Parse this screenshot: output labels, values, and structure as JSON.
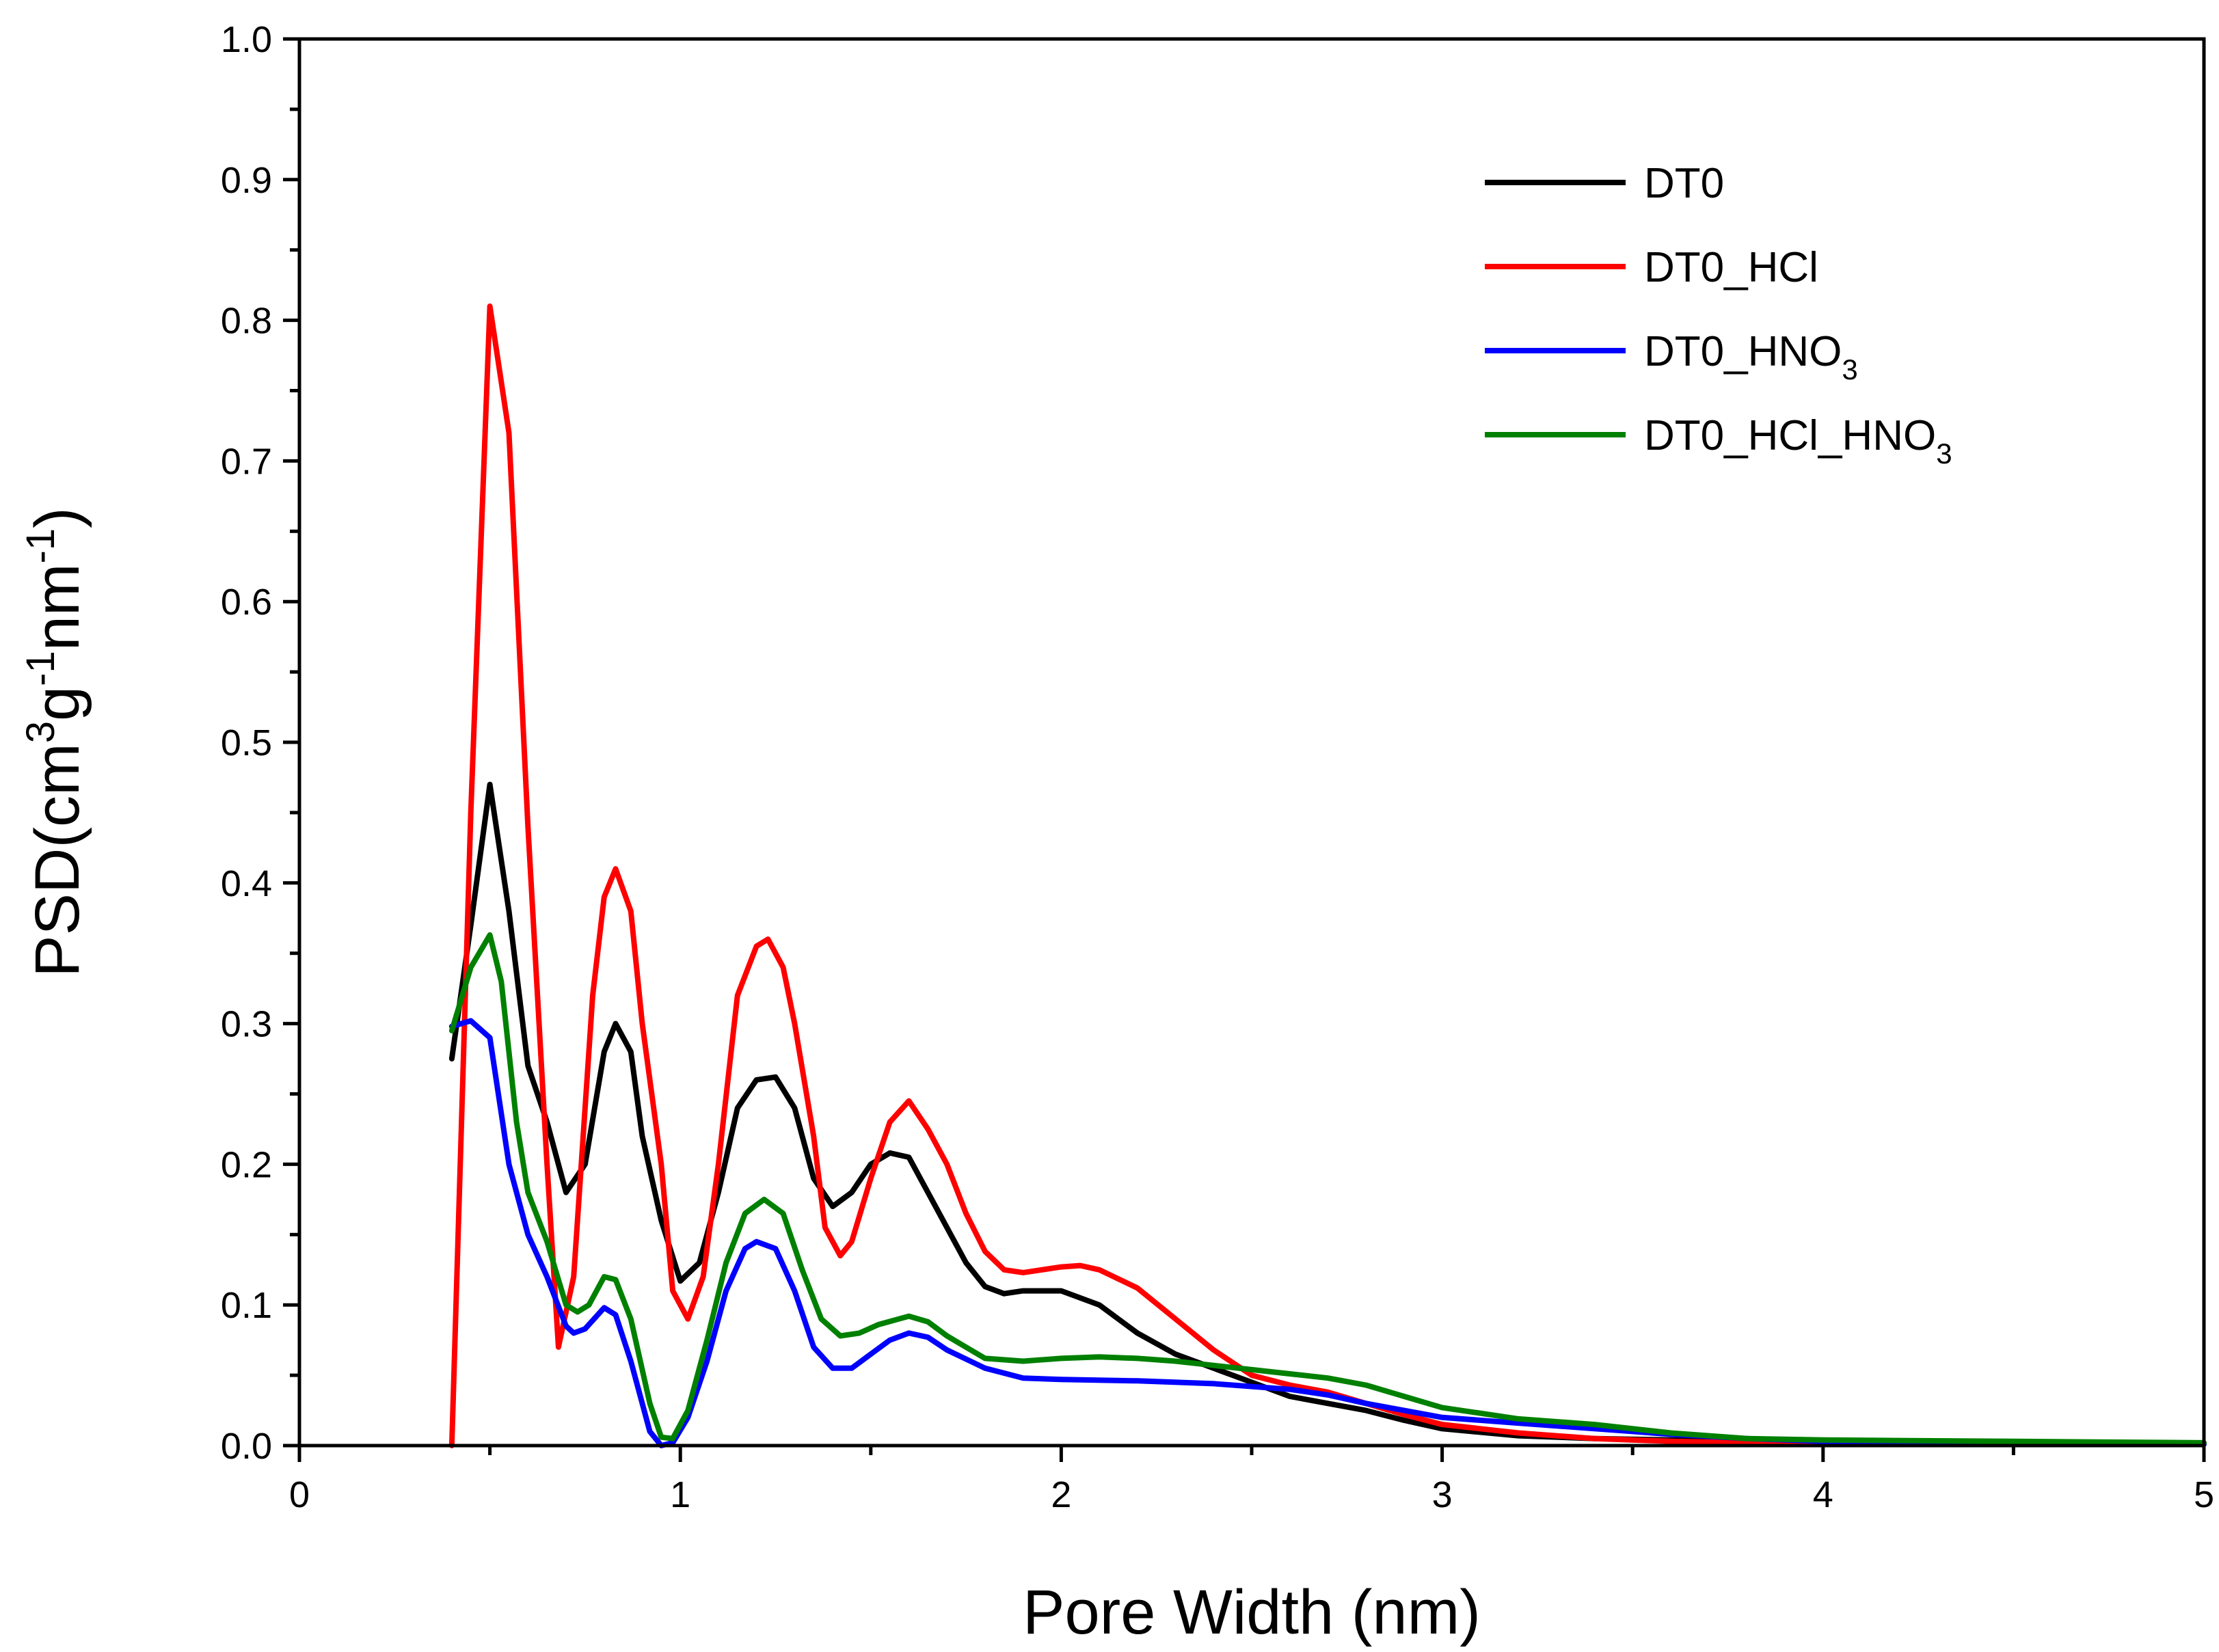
{
  "chart_data": {
    "type": "line",
    "title": "",
    "xlabel": "Pore Width (nm)",
    "ylabel": {
      "base": "PSD(cm",
      "sup1": "3",
      "mid": "g",
      "sup2": "-1",
      "mid2": "nm",
      "sup3": "-1",
      "end": ")"
    },
    "xlim": [
      0,
      5
    ],
    "ylim": [
      0,
      1.0
    ],
    "x_ticks": [
      0,
      1,
      2,
      3,
      4,
      5
    ],
    "x_tick_labels": [
      "0",
      "1",
      "2",
      "3",
      "4",
      "5"
    ],
    "y_ticks": [
      0.0,
      0.1,
      0.2,
      0.3,
      0.4,
      0.5,
      0.6,
      0.7,
      0.8,
      0.9,
      1.0
    ],
    "y_tick_labels": [
      "0.0",
      "0.1",
      "0.2",
      "0.3",
      "0.4",
      "0.5",
      "0.6",
      "0.7",
      "0.8",
      "0.9",
      "1.0"
    ],
    "grid": false,
    "legend_position": "top-right",
    "series": [
      {
        "name": "DT0",
        "label_main": "DT0",
        "label_sub": "",
        "label_tail": "",
        "color": "#000000",
        "points": [
          [
            0.4,
            0.275
          ],
          [
            0.45,
            0.37
          ],
          [
            0.5,
            0.47
          ],
          [
            0.55,
            0.38
          ],
          [
            0.6,
            0.27
          ],
          [
            0.65,
            0.23
          ],
          [
            0.7,
            0.18
          ],
          [
            0.75,
            0.2
          ],
          [
            0.8,
            0.28
          ],
          [
            0.83,
            0.3
          ],
          [
            0.87,
            0.28
          ],
          [
            0.9,
            0.22
          ],
          [
            0.95,
            0.16
          ],
          [
            1.0,
            0.117
          ],
          [
            1.05,
            0.13
          ],
          [
            1.1,
            0.18
          ],
          [
            1.15,
            0.24
          ],
          [
            1.2,
            0.26
          ],
          [
            1.25,
            0.262
          ],
          [
            1.3,
            0.24
          ],
          [
            1.35,
            0.19
          ],
          [
            1.4,
            0.17
          ],
          [
            1.45,
            0.18
          ],
          [
            1.5,
            0.2
          ],
          [
            1.55,
            0.208
          ],
          [
            1.6,
            0.205
          ],
          [
            1.65,
            0.18
          ],
          [
            1.7,
            0.155
          ],
          [
            1.75,
            0.13
          ],
          [
            1.8,
            0.113
          ],
          [
            1.85,
            0.108
          ],
          [
            1.9,
            0.11
          ],
          [
            2.0,
            0.11
          ],
          [
            2.1,
            0.1
          ],
          [
            2.2,
            0.08
          ],
          [
            2.3,
            0.065
          ],
          [
            2.4,
            0.055
          ],
          [
            2.5,
            0.045
          ],
          [
            2.6,
            0.035
          ],
          [
            2.7,
            0.03
          ],
          [
            2.8,
            0.025
          ],
          [
            2.9,
            0.018
          ],
          [
            3.0,
            0.012
          ],
          [
            3.2,
            0.007
          ],
          [
            3.4,
            0.005
          ],
          [
            3.6,
            0.004
          ],
          [
            3.8,
            0.003
          ],
          [
            4.0,
            0.002
          ],
          [
            4.5,
            0.001
          ],
          [
            5.0,
            0.001
          ]
        ]
      },
      {
        "name": "DT0_HCl",
        "label_main": "DT0_HCl",
        "label_sub": "",
        "label_tail": "",
        "color": "#ff0000",
        "points": [
          [
            0.4,
            0.0
          ],
          [
            0.45,
            0.45
          ],
          [
            0.5,
            0.81
          ],
          [
            0.55,
            0.72
          ],
          [
            0.6,
            0.44
          ],
          [
            0.65,
            0.2
          ],
          [
            0.68,
            0.07
          ],
          [
            0.72,
            0.12
          ],
          [
            0.77,
            0.32
          ],
          [
            0.8,
            0.39
          ],
          [
            0.83,
            0.41
          ],
          [
            0.87,
            0.38
          ],
          [
            0.9,
            0.3
          ],
          [
            0.95,
            0.2
          ],
          [
            0.98,
            0.11
          ],
          [
            1.02,
            0.09
          ],
          [
            1.06,
            0.12
          ],
          [
            1.1,
            0.2
          ],
          [
            1.15,
            0.32
          ],
          [
            1.2,
            0.355
          ],
          [
            1.23,
            0.36
          ],
          [
            1.27,
            0.34
          ],
          [
            1.3,
            0.3
          ],
          [
            1.35,
            0.22
          ],
          [
            1.38,
            0.155
          ],
          [
            1.42,
            0.135
          ],
          [
            1.45,
            0.145
          ],
          [
            1.5,
            0.19
          ],
          [
            1.55,
            0.23
          ],
          [
            1.6,
            0.245
          ],
          [
            1.65,
            0.225
          ],
          [
            1.7,
            0.2
          ],
          [
            1.75,
            0.165
          ],
          [
            1.8,
            0.138
          ],
          [
            1.85,
            0.125
          ],
          [
            1.9,
            0.123
          ],
          [
            2.0,
            0.127
          ],
          [
            2.05,
            0.128
          ],
          [
            2.1,
            0.125
          ],
          [
            2.2,
            0.112
          ],
          [
            2.3,
            0.09
          ],
          [
            2.4,
            0.068
          ],
          [
            2.5,
            0.05
          ],
          [
            2.6,
            0.043
          ],
          [
            2.7,
            0.038
          ],
          [
            2.8,
            0.03
          ],
          [
            2.9,
            0.022
          ],
          [
            3.0,
            0.015
          ],
          [
            3.2,
            0.009
          ],
          [
            3.4,
            0.005
          ],
          [
            3.6,
            0.003
          ],
          [
            3.8,
            0.002
          ],
          [
            4.0,
            0.001
          ],
          [
            4.5,
            0.001
          ],
          [
            5.0,
            0.001
          ]
        ]
      },
      {
        "name": "DT0_HNO3",
        "label_main": "DT0_HNO",
        "label_sub": "3",
        "label_tail": "",
        "color": "#0000ff",
        "points": [
          [
            0.4,
            0.298
          ],
          [
            0.45,
            0.302
          ],
          [
            0.5,
            0.29
          ],
          [
            0.55,
            0.2
          ],
          [
            0.6,
            0.15
          ],
          [
            0.65,
            0.12
          ],
          [
            0.7,
            0.085
          ],
          [
            0.72,
            0.08
          ],
          [
            0.75,
            0.083
          ],
          [
            0.8,
            0.098
          ],
          [
            0.83,
            0.093
          ],
          [
            0.87,
            0.06
          ],
          [
            0.92,
            0.01
          ],
          [
            0.95,
            0.0
          ],
          [
            0.98,
            0.002
          ],
          [
            1.02,
            0.02
          ],
          [
            1.07,
            0.06
          ],
          [
            1.12,
            0.11
          ],
          [
            1.17,
            0.14
          ],
          [
            1.2,
            0.145
          ],
          [
            1.25,
            0.14
          ],
          [
            1.3,
            0.11
          ],
          [
            1.35,
            0.07
          ],
          [
            1.4,
            0.055
          ],
          [
            1.45,
            0.055
          ],
          [
            1.5,
            0.065
          ],
          [
            1.55,
            0.075
          ],
          [
            1.6,
            0.08
          ],
          [
            1.65,
            0.077
          ],
          [
            1.7,
            0.068
          ],
          [
            1.8,
            0.055
          ],
          [
            1.9,
            0.048
          ],
          [
            2.0,
            0.047
          ],
          [
            2.2,
            0.046
          ],
          [
            2.4,
            0.044
          ],
          [
            2.6,
            0.04
          ],
          [
            2.7,
            0.036
          ],
          [
            2.8,
            0.03
          ],
          [
            2.9,
            0.025
          ],
          [
            3.0,
            0.02
          ],
          [
            3.2,
            0.016
          ],
          [
            3.4,
            0.012
          ],
          [
            3.6,
            0.008
          ],
          [
            3.8,
            0.005
          ],
          [
            4.0,
            0.003
          ],
          [
            4.5,
            0.002
          ],
          [
            5.0,
            0.001
          ]
        ]
      },
      {
        "name": "DT0_HCl_HNO3",
        "label_main": "DT0_HCl_HNO",
        "label_sub": "3",
        "label_tail": "",
        "color": "#008000",
        "points": [
          [
            0.4,
            0.295
          ],
          [
            0.45,
            0.34
          ],
          [
            0.5,
            0.363
          ],
          [
            0.53,
            0.33
          ],
          [
            0.57,
            0.23
          ],
          [
            0.6,
            0.18
          ],
          [
            0.65,
            0.145
          ],
          [
            0.7,
            0.1
          ],
          [
            0.73,
            0.095
          ],
          [
            0.76,
            0.1
          ],
          [
            0.8,
            0.12
          ],
          [
            0.83,
            0.118
          ],
          [
            0.87,
            0.09
          ],
          [
            0.92,
            0.03
          ],
          [
            0.95,
            0.006
          ],
          [
            0.98,
            0.005
          ],
          [
            1.02,
            0.025
          ],
          [
            1.07,
            0.075
          ],
          [
            1.12,
            0.13
          ],
          [
            1.17,
            0.165
          ],
          [
            1.22,
            0.175
          ],
          [
            1.27,
            0.165
          ],
          [
            1.32,
            0.125
          ],
          [
            1.37,
            0.09
          ],
          [
            1.42,
            0.078
          ],
          [
            1.47,
            0.08
          ],
          [
            1.52,
            0.086
          ],
          [
            1.6,
            0.092
          ],
          [
            1.65,
            0.088
          ],
          [
            1.7,
            0.078
          ],
          [
            1.8,
            0.062
          ],
          [
            1.9,
            0.06
          ],
          [
            2.0,
            0.062
          ],
          [
            2.1,
            0.063
          ],
          [
            2.2,
            0.062
          ],
          [
            2.3,
            0.06
          ],
          [
            2.4,
            0.057
          ],
          [
            2.5,
            0.054
          ],
          [
            2.6,
            0.051
          ],
          [
            2.7,
            0.048
          ],
          [
            2.8,
            0.043
          ],
          [
            2.9,
            0.035
          ],
          [
            3.0,
            0.027
          ],
          [
            3.2,
            0.019
          ],
          [
            3.4,
            0.015
          ],
          [
            3.6,
            0.009
          ],
          [
            3.8,
            0.005
          ],
          [
            4.0,
            0.004
          ],
          [
            4.5,
            0.003
          ],
          [
            5.0,
            0.002
          ]
        ]
      }
    ]
  }
}
